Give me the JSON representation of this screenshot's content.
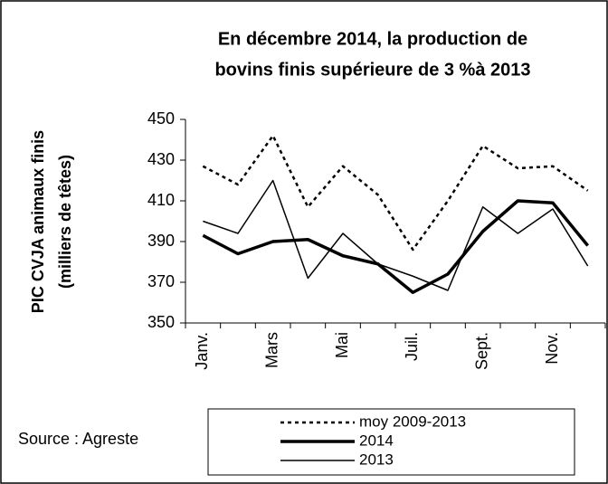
{
  "chart_data": {
    "type": "line",
    "title": [
      "En décembre 2014, la production de",
      "bovins finis supérieure de 3 %à 2013"
    ],
    "y_label": [
      "PIC CVJA animaux finis",
      "(milliers de têtes)"
    ],
    "source": "Source : Agreste",
    "categories": [
      "Janv.",
      null,
      "Mars",
      null,
      "Mai",
      null,
      "Juil.",
      null,
      "Sept.",
      null,
      "Nov.",
      null
    ],
    "ylim": [
      350,
      450
    ],
    "yticks": [
      350,
      370,
      390,
      410,
      430,
      450
    ],
    "series": [
      {
        "name": "moy 2009-2013",
        "color": "#000000",
        "dash": "dotted",
        "width": 2.5,
        "values": [
          427,
          418,
          442,
          407,
          427,
          413,
          386,
          410,
          437,
          426,
          427,
          415
        ]
      },
      {
        "name": "2014",
        "color": "#000000",
        "dash": "solid",
        "width": 3.5,
        "values": [
          393,
          384,
          390,
          391,
          383,
          379,
          365,
          374,
          395,
          410,
          409,
          388
        ]
      },
      {
        "name": "2013",
        "color": "#000000",
        "dash": "solid",
        "width": 1.5,
        "values": [
          400,
          394,
          420,
          372,
          394,
          379,
          373,
          366,
          407,
          394,
          406,
          378
        ]
      }
    ]
  }
}
